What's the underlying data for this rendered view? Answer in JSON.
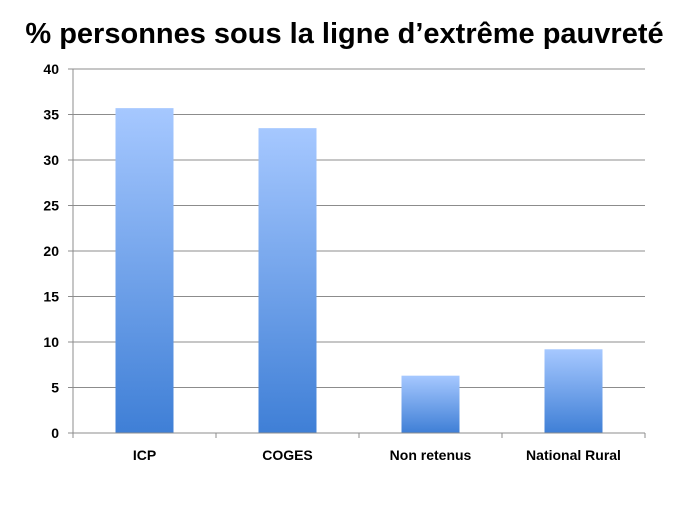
{
  "chart_data": {
    "type": "bar",
    "title": "% personnes sous la ligne d’extrême pauvreté",
    "categories": [
      "ICP",
      "COGES",
      "Non retenus",
      "National Rural"
    ],
    "values": [
      35.7,
      33.5,
      6.3,
      9.2
    ],
    "xlabel": "",
    "ylabel": "",
    "ylim": [
      0,
      40
    ],
    "yticks": [
      0,
      5,
      10,
      15,
      20,
      25,
      30,
      35,
      40
    ],
    "grid": true,
    "legend": "none",
    "bar_color_top": "#a6c8ff",
    "bar_color_bottom": "#3f7fd6"
  }
}
